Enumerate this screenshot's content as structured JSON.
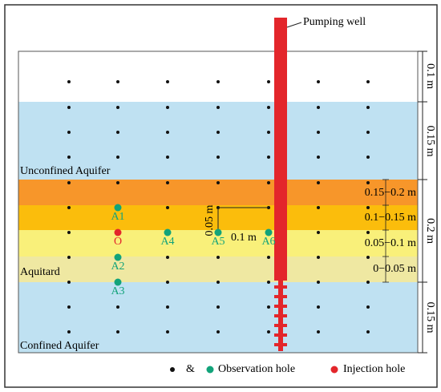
{
  "well_label": "Pumping well",
  "layers": {
    "unconfined": "Unconfined Aquifer",
    "aquitard": "Aquitard",
    "confined": "Confined Aquifer"
  },
  "points": {
    "observation": [
      "A1",
      "A2",
      "A3",
      "A4",
      "A5",
      "A6"
    ],
    "injection": "O"
  },
  "dimensions": {
    "right": [
      "0.1 m",
      "0.15 m",
      "0.2 m",
      "0.15 m"
    ],
    "inner": [
      "0.15−0.2 m",
      "0.1−0.15 m",
      "0.05−0.1 m",
      "0−0.05 m"
    ],
    "scale_vertical": "0.05 m",
    "scale_horizontal": "0.1 m"
  },
  "legend": {
    "separator": "&",
    "observation": "Observation hole",
    "injection": "Injection hole"
  }
}
